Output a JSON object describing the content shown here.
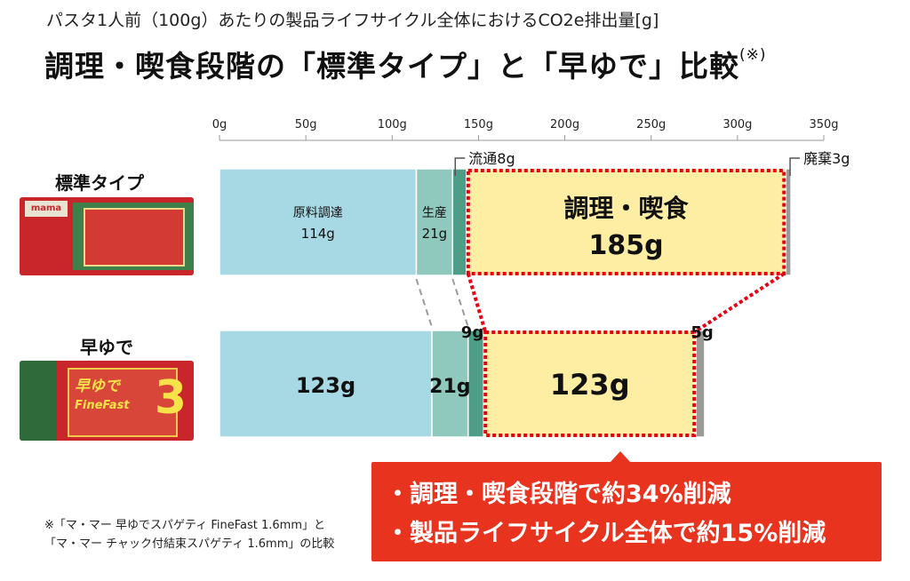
{
  "header": {
    "subtitle": "パスタ1人前（100g）あたりの製品ライフサイクル全体におけるCO2e排出量[g]",
    "title": "調理・喫食段階の「標準タイプ」と「早ゆで」比較",
    "title_mark": "(※)"
  },
  "rows": [
    {
      "label": "標準タイプ",
      "package_logo": "mama"
    },
    {
      "label": "早ゆで",
      "package_logo": "早ゆで",
      "package_brand": "FineFast",
      "package_digit": "3"
    }
  ],
  "callout": {
    "line1": "・調理・喫食段階で約34%削減",
    "line2": "・製品ライフサイクル全体で約15%削減"
  },
  "note": {
    "line1": "※「マ・マー 早ゆでスパゲティ FineFast 1.6mm」と",
    "line2": "「マ・マー チャック付結束スパゲティ 1.6mm」の比較"
  },
  "chart_data": {
    "type": "bar",
    "orientation": "horizontal",
    "stacked": true,
    "x_ticks": [
      "0g",
      "50g",
      "100g",
      "150g",
      "200g",
      "250g",
      "300g",
      "350g"
    ],
    "xlim": [
      0,
      350
    ],
    "categories": [
      "標準タイプ",
      "早ゆで"
    ],
    "series": [
      {
        "name": "原料調達",
        "values": [
          114,
          123
        ],
        "color": "#a7d9e4"
      },
      {
        "name": "生産",
        "values": [
          21,
          21
        ],
        "color": "#8fc8bd"
      },
      {
        "name": "流通",
        "values": [
          8,
          9
        ],
        "color": "#4d9d87"
      },
      {
        "name": "調理・喫食",
        "values": [
          185,
          123
        ],
        "color": "#fdeea4"
      },
      {
        "name": "廃棄",
        "values": [
          3,
          5
        ],
        "color": "#9a9a9a"
      }
    ],
    "labels": {
      "std_material": "原料調達",
      "std_material_val": "114g",
      "std_prod": "生産",
      "std_prod_val": "21g",
      "std_dist": "流通8g",
      "std_cook": "調理・喫食",
      "std_cook_val": "185g",
      "std_waste": "廃棄3g",
      "fast_material_val": "123g",
      "fast_prod_val": "21g",
      "fast_dist": "9g",
      "fast_cook_val": "123g",
      "fast_waste": "5g"
    },
    "colors": {
      "highlight_border": "#e60012",
      "axis": "#999999",
      "connector": "#9a9a9a"
    }
  }
}
